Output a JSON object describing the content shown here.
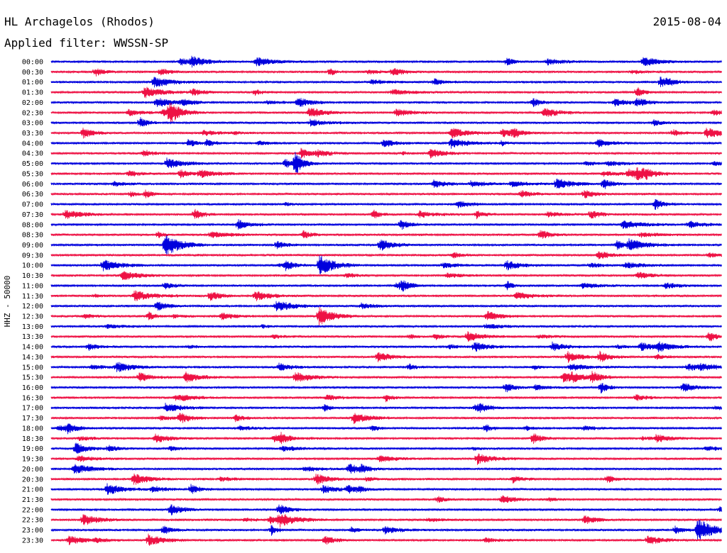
{
  "header": {
    "station": "HL Archagelos (Rhodos)",
    "filter": "Applied filter: WWSSN-SP",
    "date": "2015-08-04"
  },
  "chart_data": {
    "type": "line",
    "title": "HL Archagelos (Rhodos)",
    "subtitle": "Applied filter: WWSSN-SP",
    "date": "2015-08-04",
    "ylabel": "HHZ - 50000",
    "colors": {
      "even_hour": "#0000dd",
      "odd_hour": "#ee1144"
    },
    "rows": [
      "00:00",
      "00:30",
      "01:00",
      "01:30",
      "02:00",
      "02:30",
      "03:00",
      "03:30",
      "04:00",
      "04:30",
      "05:00",
      "05:30",
      "06:00",
      "06:30",
      "07:00",
      "07:30",
      "08:00",
      "08:30",
      "09:00",
      "09:30",
      "10:00",
      "10:30",
      "11:00",
      "11:30",
      "12:00",
      "12:30",
      "13:00",
      "13:30",
      "14:00",
      "14:30",
      "15:00",
      "15:30",
      "16:00",
      "16:30",
      "17:00",
      "17:30",
      "18:00",
      "18:30",
      "19:00",
      "19:30",
      "20:00",
      "20:30",
      "21:00",
      "21:30",
      "22:00",
      "22:30",
      "23:00",
      "23:30"
    ]
  }
}
